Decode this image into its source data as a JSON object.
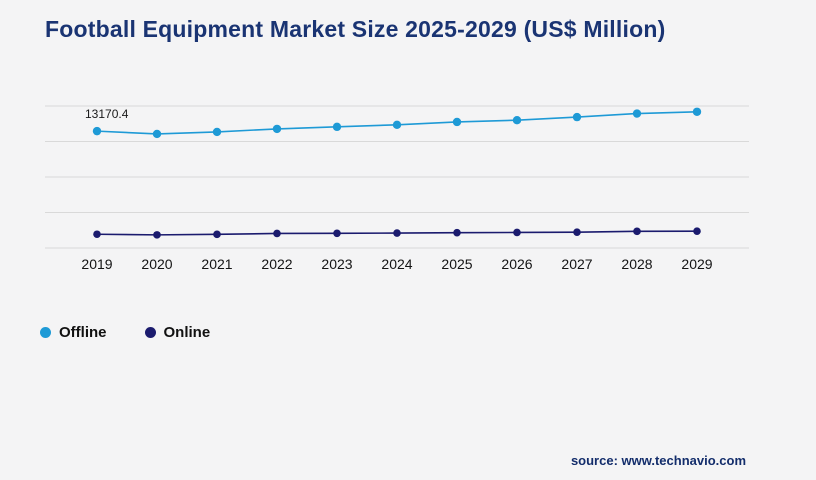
{
  "header": {
    "title": "Football Equipment Market Size 2025-2029 (US$ Million)"
  },
  "chart_data": {
    "type": "line",
    "title": "Football Equipment Market Size 2025-2029 (US$ Million)",
    "categories": [
      "2019",
      "2020",
      "2021",
      "2022",
      "2023",
      "2024",
      "2025",
      "2026",
      "2027",
      "2028",
      "2029"
    ],
    "series": [
      {
        "name": "Offline",
        "color": "#1e9ad6",
        "values": [
          13170.4,
          12850,
          13080,
          13420,
          13650,
          13880,
          14200,
          14400,
          14750,
          15150,
          15350
        ]
      },
      {
        "name": "Online",
        "color": "#1b1b6e",
        "values": [
          1550,
          1480,
          1540,
          1640,
          1660,
          1680,
          1720,
          1750,
          1780,
          1880,
          1890
        ]
      }
    ],
    "ylim": [
      0,
      16500
    ],
    "gridline_values": [
      0,
      4000,
      8000,
      12000,
      16000
    ],
    "grid": true,
    "legend_position": "bottom-left",
    "annotations": [
      {
        "series_index": 0,
        "point_index": 0,
        "text": "13170.4"
      }
    ],
    "gridline_color": "#d9d9d9"
  },
  "legend": {
    "items": [
      {
        "label": "Offline"
      },
      {
        "label": "Online"
      }
    ]
  },
  "footer": {
    "source": "source: www.technavio.com"
  }
}
